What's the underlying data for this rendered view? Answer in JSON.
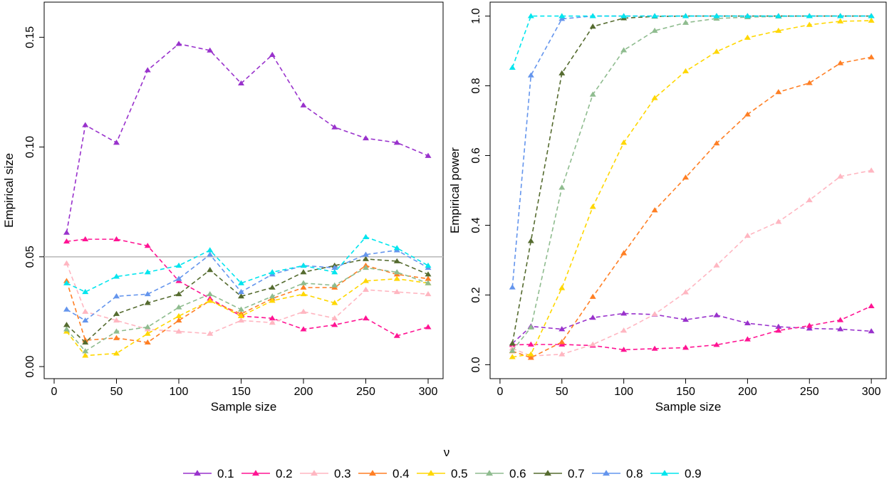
{
  "chart_data": [
    {
      "type": "line",
      "xlabel": "Sample size",
      "ylabel": "Empirical size",
      "xlim": [
        -8,
        312
      ],
      "ylim": [
        -0.0055,
        0.166
      ],
      "x_ticks": [
        0,
        50,
        100,
        150,
        200,
        250,
        300
      ],
      "y_ticks": [
        0.0,
        0.05,
        0.1,
        0.15
      ],
      "y_tick_labels": [
        "0.00",
        "0.05",
        "0.10",
        "0.15"
      ],
      "reference_line": 0.05,
      "reference_line_color": "#bdbdbd",
      "x": [
        10,
        25,
        50,
        75,
        100,
        125,
        150,
        175,
        200,
        225,
        250,
        275,
        300
      ],
      "series": [
        {
          "name": "0.1",
          "values": [
            0.061,
            0.11,
            0.102,
            0.135,
            0.147,
            0.144,
            0.129,
            0.142,
            0.119,
            0.109,
            0.104,
            0.102,
            0.096
          ]
        },
        {
          "name": "0.2",
          "values": [
            0.057,
            0.058,
            0.058,
            0.055,
            0.039,
            0.031,
            0.023,
            0.022,
            0.017,
            0.019,
            0.022,
            0.014,
            0.018
          ]
        },
        {
          "name": "0.3",
          "values": [
            0.047,
            0.025,
            0.021,
            0.017,
            0.016,
            0.015,
            0.021,
            0.02,
            0.025,
            0.022,
            0.035,
            0.034,
            0.033
          ]
        },
        {
          "name": "0.4",
          "values": [
            0.039,
            0.012,
            0.013,
            0.011,
            0.021,
            0.03,
            0.024,
            0.031,
            0.036,
            0.036,
            0.046,
            0.042,
            0.04
          ]
        },
        {
          "name": "0.5",
          "values": [
            0.016,
            0.005,
            0.006,
            0.015,
            0.023,
            0.03,
            0.023,
            0.03,
            0.033,
            0.029,
            0.039,
            0.04,
            0.038
          ]
        },
        {
          "name": "0.6",
          "values": [
            0.017,
            0.007,
            0.016,
            0.018,
            0.027,
            0.033,
            0.026,
            0.032,
            0.038,
            0.037,
            0.045,
            0.043,
            0.038
          ]
        },
        {
          "name": "0.7",
          "values": [
            0.019,
            0.011,
            0.024,
            0.029,
            0.033,
            0.044,
            0.032,
            0.036,
            0.043,
            0.046,
            0.049,
            0.048,
            0.042
          ]
        },
        {
          "name": "0.8",
          "values": [
            0.026,
            0.021,
            0.032,
            0.033,
            0.04,
            0.051,
            0.034,
            0.042,
            0.046,
            0.045,
            0.051,
            0.053,
            0.045
          ]
        },
        {
          "name": "0.9",
          "values": [
            0.038,
            0.034,
            0.041,
            0.043,
            0.046,
            0.053,
            0.038,
            0.043,
            0.046,
            0.043,
            0.059,
            0.054,
            0.046
          ]
        }
      ]
    },
    {
      "type": "line",
      "xlabel": "Sample size",
      "ylabel": "Empirical power",
      "xlim": [
        -8,
        312
      ],
      "ylim": [
        -0.04,
        1.04
      ],
      "x_ticks": [
        0,
        50,
        100,
        150,
        200,
        250,
        300
      ],
      "y_ticks": [
        0.0,
        0.2,
        0.4,
        0.6,
        0.8,
        1.0
      ],
      "y_tick_labels": [
        "0.0",
        "0.2",
        "0.4",
        "0.6",
        "0.8",
        "1.0"
      ],
      "x": [
        10,
        25,
        50,
        75,
        100,
        125,
        150,
        175,
        200,
        225,
        250,
        275,
        300
      ],
      "series": [
        {
          "name": "0.1",
          "values": [
            0.061,
            0.11,
            0.102,
            0.135,
            0.147,
            0.144,
            0.129,
            0.142,
            0.119,
            0.109,
            0.104,
            0.102,
            0.096
          ]
        },
        {
          "name": "0.2",
          "values": [
            0.057,
            0.058,
            0.058,
            0.055,
            0.043,
            0.046,
            0.049,
            0.057,
            0.073,
            0.098,
            0.112,
            0.128,
            0.168
          ]
        },
        {
          "name": "0.3",
          "values": [
            0.047,
            0.025,
            0.03,
            0.058,
            0.098,
            0.145,
            0.208,
            0.285,
            0.37,
            0.41,
            0.472,
            0.54,
            0.557
          ]
        },
        {
          "name": "0.4",
          "values": [
            0.039,
            0.02,
            0.065,
            0.195,
            0.32,
            0.443,
            0.537,
            0.635,
            0.718,
            0.782,
            0.808,
            0.865,
            0.882
          ]
        },
        {
          "name": "0.5",
          "values": [
            0.022,
            0.03,
            0.22,
            0.453,
            0.637,
            0.765,
            0.842,
            0.898,
            0.938,
            0.958,
            0.975,
            0.985,
            0.987
          ]
        },
        {
          "name": "0.6",
          "values": [
            0.04,
            0.107,
            0.508,
            0.775,
            0.902,
            0.958,
            0.981,
            0.993,
            0.997,
            0.999,
            1.0,
            1.0,
            1.0
          ]
        },
        {
          "name": "0.7",
          "values": [
            0.061,
            0.355,
            0.836,
            0.97,
            0.994,
            0.999,
            1.0,
            1.0,
            1.0,
            1.0,
            1.0,
            1.0,
            1.0
          ]
        },
        {
          "name": "0.8",
          "values": [
            0.222,
            0.83,
            0.992,
            1.0,
            1.0,
            1.0,
            1.0,
            1.0,
            1.0,
            1.0,
            1.0,
            1.0,
            1.0
          ]
        },
        {
          "name": "0.9",
          "values": [
            0.852,
            1.0,
            1.0,
            1.0,
            1.0,
            1.0,
            1.0,
            1.0,
            1.0,
            1.0,
            1.0,
            1.0,
            1.0
          ]
        }
      ]
    }
  ],
  "legend": {
    "title": "ν",
    "position": "bottom-center",
    "entries": [
      {
        "label": "0.1",
        "color": "#9932CC"
      },
      {
        "label": "0.2",
        "color": "#FF1493"
      },
      {
        "label": "0.3",
        "color": "#FFB6C1"
      },
      {
        "label": "0.4",
        "color": "#FF7F24"
      },
      {
        "label": "0.5",
        "color": "#FFD700"
      },
      {
        "label": "0.6",
        "color": "#8FBC8F"
      },
      {
        "label": "0.7",
        "color": "#556B2F"
      },
      {
        "label": "0.8",
        "color": "#6495ED"
      },
      {
        "label": "0.9",
        "color": "#00E5EE"
      }
    ]
  }
}
